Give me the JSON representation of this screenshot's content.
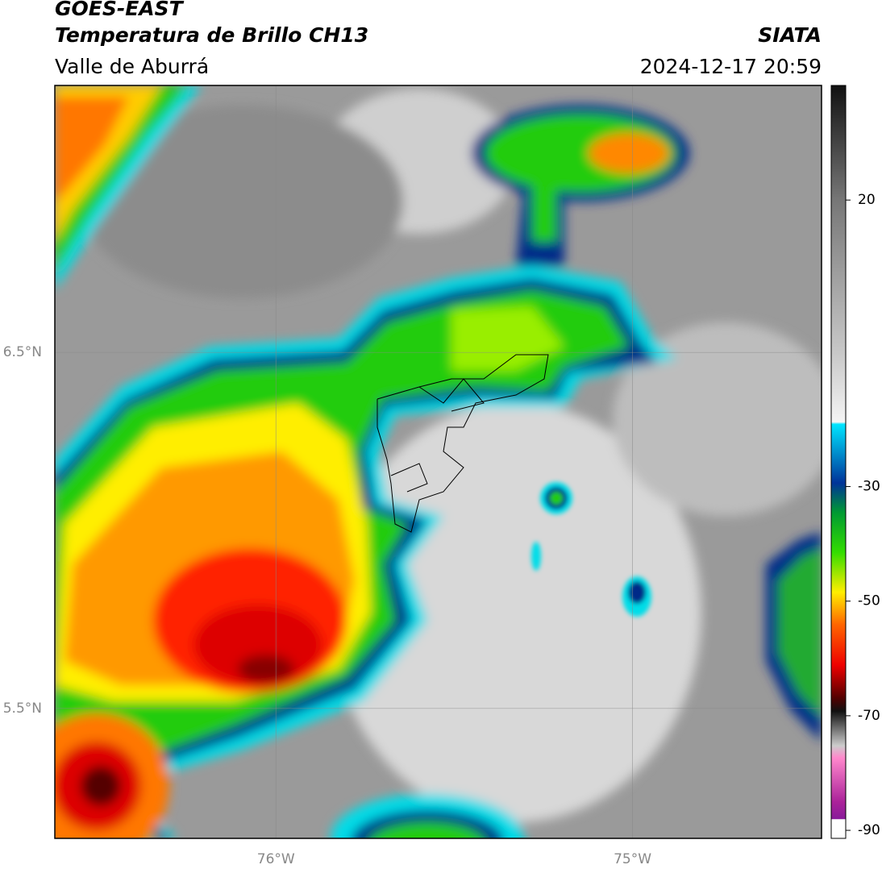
{
  "header": {
    "title": "GOES-EAST",
    "subtitle": "Temperatura de Brillo CH13",
    "region": "Valle de Aburrá",
    "source": "SIATA",
    "datetime": "2024-12-17 20:59"
  },
  "map": {
    "latlim": [
      5.135,
      7.25
    ],
    "lonlim": [
      -76.62,
      -74.47
    ],
    "latticks": [
      {
        "value": 6.5,
        "label": "6.5°N"
      },
      {
        "value": 5.5,
        "label": "5.5°N"
      }
    ],
    "lonticks": [
      {
        "value": -76,
        "label": "76°W"
      },
      {
        "value": -75,
        "label": "75°W"
      }
    ]
  },
  "colorbar": {
    "lim": [
      -91.4,
      40
    ],
    "ticks": [
      20,
      -30,
      -50,
      -70,
      -90
    ]
  }
}
